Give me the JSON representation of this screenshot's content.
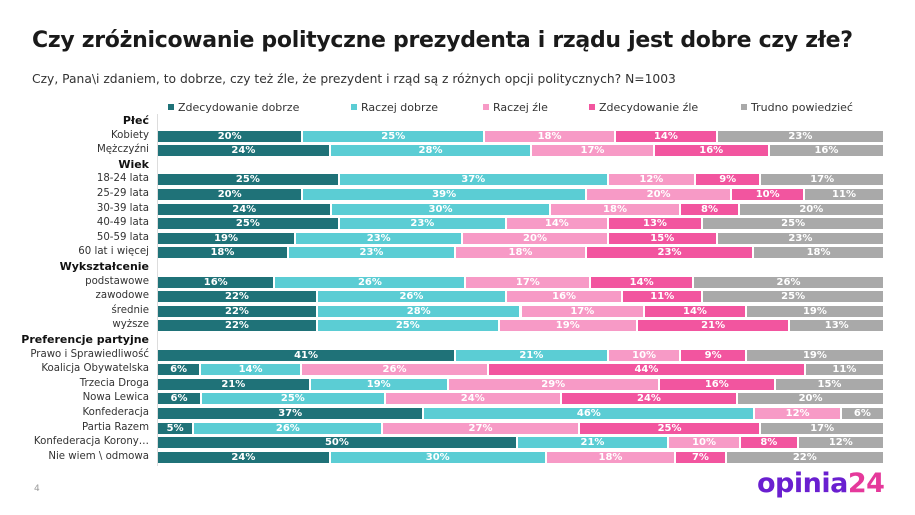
{
  "title": "Czy zróżnicowanie polityczne prezydenta i rządu jest dobre czy złe?",
  "subtitle": "Czy, Pana\\i zdaniem, to dobrze, czy też źle, że prezydent i rząd są z różnych opcji politycznych? N=1003",
  "page_number": "4",
  "logo": {
    "main": "opinia",
    "suffix": "24"
  },
  "chart_data": {
    "type": "bar",
    "orientation": "horizontal-stacked-100",
    "series_names": [
      "Zdecydowanie dobrze",
      "Raczej dobrze",
      "Raczej źle",
      "Zdecydowanie źle",
      "Trudno powiedzieć"
    ],
    "colors": [
      "#1f7278",
      "#5bcdd4",
      "#f79ac6",
      "#f2559f",
      "#a9a9a9"
    ],
    "legend_position": "top",
    "unit": "%",
    "rows": [
      {
        "header": "Płeć"
      },
      {
        "label": "Kobiety",
        "values": [
          20,
          25,
          18,
          14,
          23
        ]
      },
      {
        "label": "Mężczyźni",
        "values": [
          24,
          28,
          17,
          16,
          16
        ]
      },
      {
        "header": "Wiek"
      },
      {
        "label": "18-24 lata",
        "values": [
          25,
          37,
          12,
          9,
          17
        ]
      },
      {
        "label": "25-29 lata",
        "values": [
          20,
          39,
          20,
          10,
          11
        ]
      },
      {
        "label": "30-39 lata",
        "values": [
          24,
          30,
          18,
          8,
          20
        ]
      },
      {
        "label": "40-49 lata",
        "values": [
          25,
          23,
          14,
          13,
          25
        ]
      },
      {
        "label": "50-59 lata",
        "values": [
          19,
          23,
          20,
          15,
          23
        ]
      },
      {
        "label": "60 lat i więcej",
        "values": [
          18,
          23,
          18,
          23,
          18
        ]
      },
      {
        "header": "Wykształcenie"
      },
      {
        "label": "podstawowe",
        "values": [
          16,
          26,
          17,
          14,
          26
        ]
      },
      {
        "label": "zawodowe",
        "values": [
          22,
          26,
          16,
          11,
          25
        ]
      },
      {
        "label": "średnie",
        "values": [
          22,
          28,
          17,
          14,
          19
        ]
      },
      {
        "label": "wyższe",
        "values": [
          22,
          25,
          19,
          21,
          13
        ]
      },
      {
        "header": "Preferencje partyjne"
      },
      {
        "label": "Prawo i Sprawiedliwość",
        "values": [
          41,
          21,
          10,
          9,
          19
        ]
      },
      {
        "label": "Koalicja Obywatelska",
        "values": [
          6,
          14,
          26,
          44,
          11
        ]
      },
      {
        "label": "Trzecia Droga",
        "values": [
          21,
          19,
          29,
          16,
          15
        ]
      },
      {
        "label": "Nowa Lewica",
        "values": [
          6,
          25,
          24,
          24,
          20
        ]
      },
      {
        "label": "Konfederacja",
        "values": [
          37,
          46,
          12,
          0,
          6
        ]
      },
      {
        "label": "Partia Razem",
        "values": [
          5,
          26,
          27,
          25,
          17
        ]
      },
      {
        "label": "Konfederacja Korony…",
        "values": [
          50,
          21,
          10,
          8,
          12
        ]
      },
      {
        "label": "Nie wiem \\ odmowa",
        "values": [
          24,
          30,
          18,
          7,
          22
        ]
      }
    ]
  }
}
